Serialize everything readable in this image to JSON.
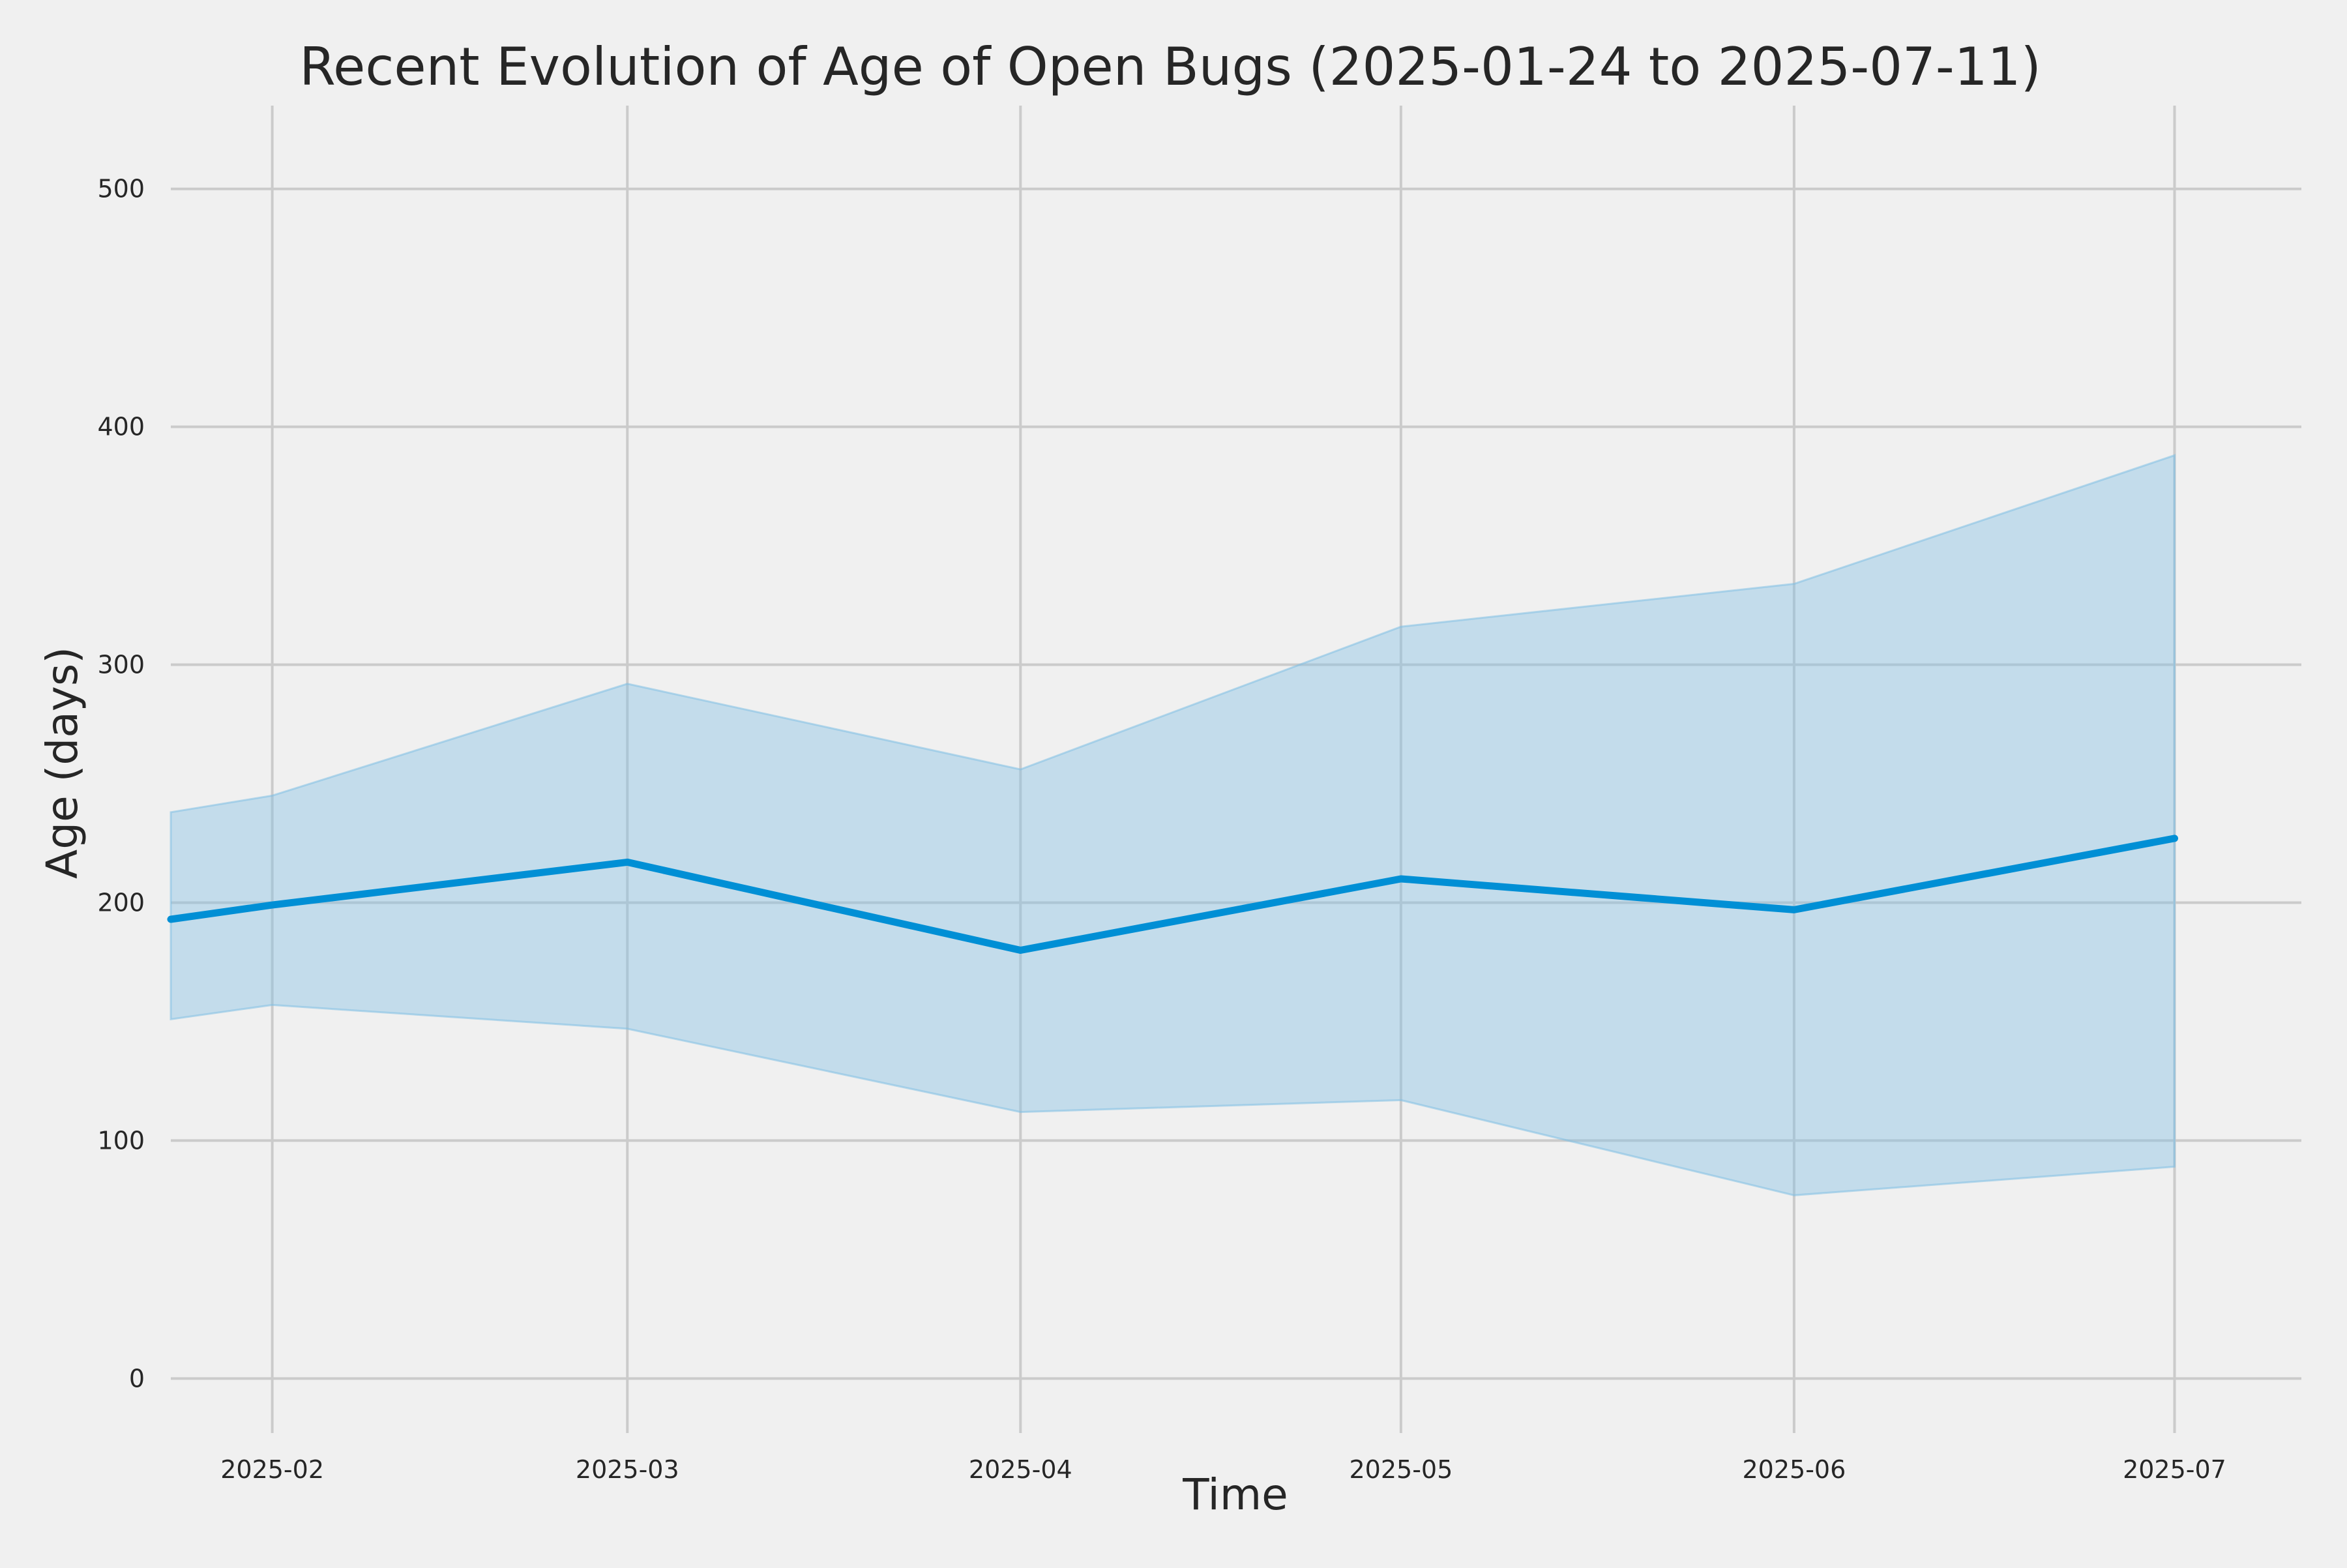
{
  "chart_data": {
    "type": "area",
    "title": "Recent Evolution of Age of Open Bugs (2025-01-24 to 2025-07-11)",
    "xlabel": "Time",
    "ylabel": "Age (days)",
    "x": [
      "2025-01-24",
      "2025-02-01",
      "2025-03-01",
      "2025-04-01",
      "2025-05-01",
      "2025-06-01",
      "2025-07-01"
    ],
    "series": [
      {
        "role": "line",
        "values": [
          193,
          199,
          217,
          180,
          210,
          197,
          227
        ]
      },
      {
        "role": "band-upper",
        "values": [
          238,
          245,
          292,
          256,
          316,
          334,
          388
        ]
      },
      {
        "role": "band-lower",
        "values": [
          151,
          157,
          147,
          112,
          117,
          77,
          89
        ]
      }
    ],
    "xlim": [
      "2025-01-24",
      "2025-07-11"
    ],
    "ylim": [
      -18,
      535
    ],
    "x_ticks": [
      "2025-02",
      "2025-03",
      "2025-04",
      "2025-05",
      "2025-06",
      "2025-07"
    ],
    "y_ticks": [
      0,
      100,
      200,
      300,
      400,
      500
    ],
    "grid": true,
    "colors": {
      "line": "#008fd5",
      "band": "#7fbfe3",
      "grid": "#cbcbcb",
      "background": "#f0f0f0"
    }
  }
}
